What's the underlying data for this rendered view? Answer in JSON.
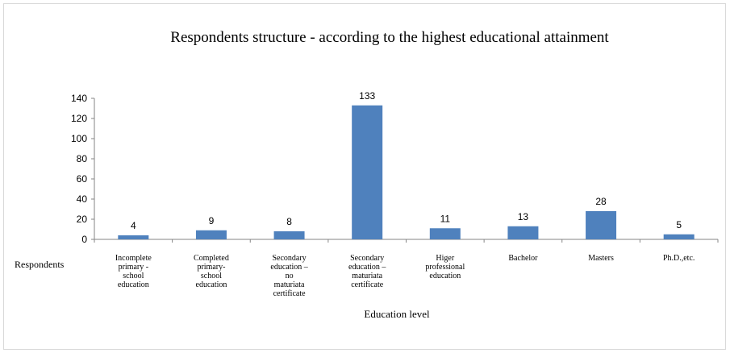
{
  "chart_data": {
    "type": "bar",
    "title": "Respondents structure - according to the highest educational attainment",
    "xlabel": "Education level",
    "ylabel": "Respondents",
    "ylim": [
      0,
      140
    ],
    "yticks": [
      0,
      20,
      40,
      60,
      80,
      100,
      120,
      140
    ],
    "grid": false,
    "legend": "none",
    "bar_color": "#4f81bd",
    "categories": [
      [
        "Incomplete",
        "primary  -",
        "school",
        "education"
      ],
      [
        "Completed",
        "primary-",
        "school",
        "education"
      ],
      [
        "Secondary",
        "education –",
        "no",
        "maturiata",
        "certificate"
      ],
      [
        "Secondary",
        "education –",
        "maturiata",
        "certificate"
      ],
      [
        "Higer",
        "professional",
        "education"
      ],
      [
        "Bachelor"
      ],
      [
        "Masters"
      ],
      [
        "Ph.D.,etc."
      ]
    ],
    "values": [
      4,
      9,
      8,
      133,
      11,
      13,
      28,
      5
    ]
  }
}
